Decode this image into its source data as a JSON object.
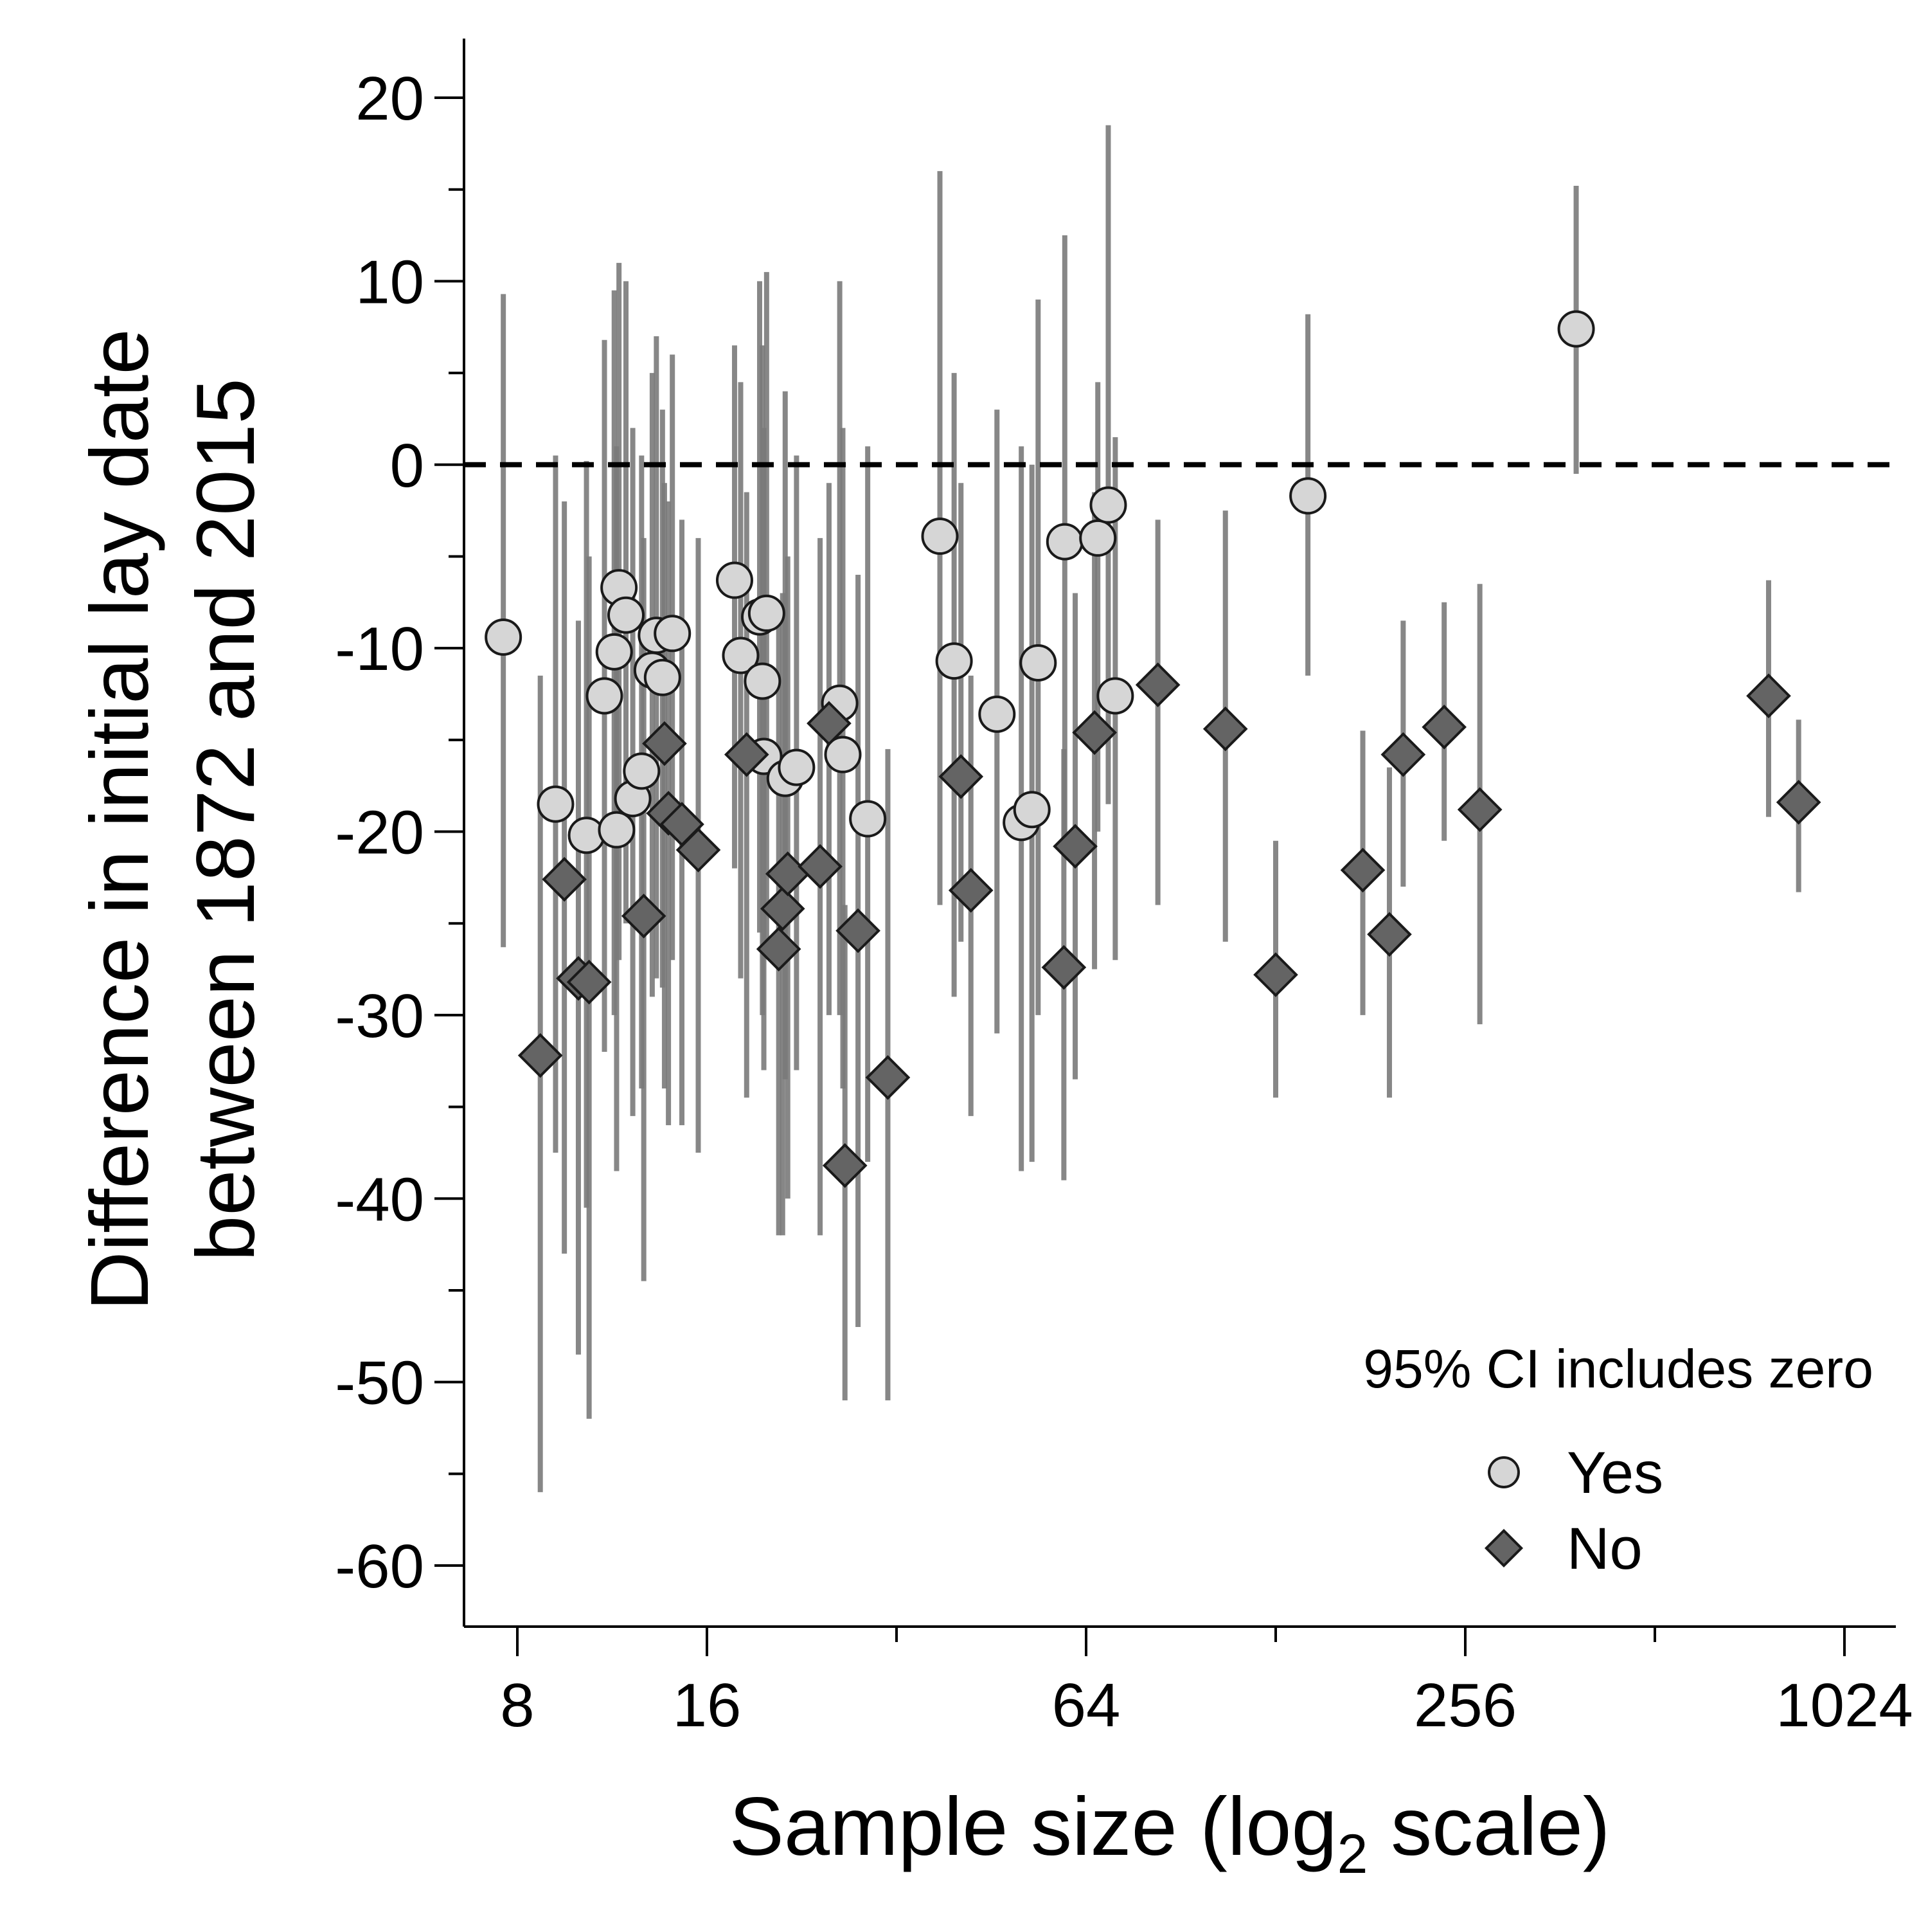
{
  "chart_data": {
    "type": "scatter",
    "xlabel": "Sample size (log",
    "xlabel_subscript": "2",
    "xlabel_suffix": " scale)",
    "ylabel_line1": "Difference in initial lay date",
    "ylabel_line2": "between 1872 and 2015",
    "x_scale": "log2",
    "xlim": [
      7.5,
      1100
    ],
    "ylim": [
      -62.5,
      23.5
    ],
    "x_ticks": [
      8,
      16,
      64,
      256,
      1024
    ],
    "x_tick_labels": [
      "8",
      "16",
      "64",
      "256",
      "1024"
    ],
    "x_minor_ticks": [
      32,
      128,
      512
    ],
    "y_ticks": [
      20,
      10,
      0,
      -10,
      -20,
      -30,
      -40,
      -50,
      -60
    ],
    "y_tick_labels": [
      "20",
      "10",
      "0",
      "-10",
      "-20",
      "-30",
      "-40",
      "-50",
      "-60"
    ],
    "y_minor_ticks": [
      15,
      5,
      -5,
      -15,
      -25,
      -35,
      -45,
      -55
    ],
    "reference_line": {
      "y": 0,
      "style": "dashed"
    },
    "grid": false,
    "legend": {
      "title": "95% CI includes zero",
      "placement": "bottom-right",
      "entries": [
        {
          "label": "Yes",
          "marker": "circle",
          "color": "#d6d6d6"
        },
        {
          "label": "No",
          "marker": "diamond",
          "color": "#646464"
        }
      ]
    },
    "colors": {
      "yes_fill": "#d6d6d6",
      "no_fill": "#646464",
      "error_bar": "#7a7a7a",
      "outline": "#1a1a1a"
    },
    "series": [
      {
        "name": "Yes",
        "marker": "circle",
        "points": [
          {
            "x": 7.6,
            "y": -9.4,
            "lo": -26.3,
            "hi": 9.3
          },
          {
            "x": 9.2,
            "y": -18.5,
            "lo": -37.5,
            "hi": 0.5
          },
          {
            "x": 10.3,
            "y": -20.2,
            "lo": -40.5,
            "hi": 0.2
          },
          {
            "x": 11.0,
            "y": -12.6,
            "lo": -32.0,
            "hi": 6.8
          },
          {
            "x": 11.4,
            "y": -10.2,
            "lo": -30.0,
            "hi": 9.5
          },
          {
            "x": 11.5,
            "y": -19.9,
            "lo": -38.5,
            "hi": 1.0
          },
          {
            "x": 11.6,
            "y": -6.7,
            "lo": -27.0,
            "hi": 11.0
          },
          {
            "x": 11.9,
            "y": -8.2,
            "lo": -25.0,
            "hi": 10.0
          },
          {
            "x": 12.2,
            "y": -18.2,
            "lo": -35.5,
            "hi": 2.0
          },
          {
            "x": 12.6,
            "y": -16.7,
            "lo": -34.0,
            "hi": 0.5
          },
          {
            "x": 13.1,
            "y": -11.2,
            "lo": -29.0,
            "hi": 5.0
          },
          {
            "x": 13.3,
            "y": -9.3,
            "lo": -28.0,
            "hi": 7.0
          },
          {
            "x": 13.6,
            "y": -11.6,
            "lo": -28.5,
            "hi": 3.0
          },
          {
            "x": 14.1,
            "y": -9.2,
            "lo": -27.0,
            "hi": 6.0
          },
          {
            "x": 17.7,
            "y": -6.3,
            "lo": -22.0,
            "hi": 6.5
          },
          {
            "x": 18.1,
            "y": -10.4,
            "lo": -28.0,
            "hi": 4.5
          },
          {
            "x": 19.4,
            "y": -8.3,
            "lo": -25.5,
            "hi": 10.0
          },
          {
            "x": 19.6,
            "y": -11.8,
            "lo": -30.0,
            "hi": 6.5
          },
          {
            "x": 19.7,
            "y": -15.9,
            "lo": -33.0,
            "hi": 2.0
          },
          {
            "x": 19.9,
            "y": -8.1,
            "lo": -26.0,
            "hi": 10.5
          },
          {
            "x": 21.3,
            "y": -17.1,
            "lo": -33.5,
            "hi": 4.0
          },
          {
            "x": 22.2,
            "y": -16.5,
            "lo": -33.0,
            "hi": 0.5
          },
          {
            "x": 26.0,
            "y": -13.0,
            "lo": -30.0,
            "hi": 10.0
          },
          {
            "x": 26.3,
            "y": -15.8,
            "lo": -34.0,
            "hi": 2.0
          },
          {
            "x": 28.8,
            "y": -19.3,
            "lo": -38.0,
            "hi": 1.0
          },
          {
            "x": 37.5,
            "y": -3.9,
            "lo": -24.0,
            "hi": 16.0
          },
          {
            "x": 39.5,
            "y": -10.7,
            "lo": -29.0,
            "hi": 5.0
          },
          {
            "x": 46.2,
            "y": -13.6,
            "lo": -31.0,
            "hi": 3.0
          },
          {
            "x": 50.5,
            "y": -19.5,
            "lo": -38.5,
            "hi": 1.0
          },
          {
            "x": 52.5,
            "y": -18.8,
            "lo": -38.0,
            "hi": 0.0
          },
          {
            "x": 53.7,
            "y": -10.8,
            "lo": -30.0,
            "hi": 9.0
          },
          {
            "x": 59.2,
            "y": -4.2,
            "lo": -21.0,
            "hi": 12.5
          },
          {
            "x": 66.8,
            "y": -4.0,
            "lo": -20.0,
            "hi": 4.5
          },
          {
            "x": 69.4,
            "y": -2.2,
            "lo": -18.5,
            "hi": 18.5
          },
          {
            "x": 71.2,
            "y": -12.6,
            "lo": -27.0,
            "hi": 1.5
          },
          {
            "x": 144.0,
            "y": -1.7,
            "lo": -11.5,
            "hi": 8.2
          },
          {
            "x": 384.0,
            "y": 7.4,
            "lo": -0.5,
            "hi": 15.2
          }
        ]
      },
      {
        "name": "No",
        "marker": "diamond",
        "points": [
          {
            "x": 8.7,
            "y": -32.2,
            "lo": -56.0,
            "hi": -11.5
          },
          {
            "x": 9.5,
            "y": -22.6,
            "lo": -43.0,
            "hi": -2.0
          },
          {
            "x": 10.0,
            "y": -28.0,
            "lo": -48.5,
            "hi": -8.5
          },
          {
            "x": 10.4,
            "y": -28.2,
            "lo": -52.0,
            "hi": -5.0
          },
          {
            "x": 12.7,
            "y": -24.6,
            "lo": -44.5,
            "hi": -4.0
          },
          {
            "x": 13.7,
            "y": -15.2,
            "lo": -34.0,
            "hi": -1.0
          },
          {
            "x": 13.9,
            "y": -19.0,
            "lo": -36.0,
            "hi": -2.0
          },
          {
            "x": 14.6,
            "y": -19.6,
            "lo": -36.0,
            "hi": -3.0
          },
          {
            "x": 15.5,
            "y": -21.0,
            "lo": -37.5,
            "hi": -4.0
          },
          {
            "x": 18.5,
            "y": -15.8,
            "lo": -34.5,
            "hi": -1.5
          },
          {
            "x": 20.8,
            "y": -26.4,
            "lo": -42.0,
            "hi": -8.5
          },
          {
            "x": 21.1,
            "y": -24.2,
            "lo": -42.0,
            "hi": -7.0
          },
          {
            "x": 21.5,
            "y": -22.3,
            "lo": -40.0,
            "hi": -5.0
          },
          {
            "x": 24.2,
            "y": -21.9,
            "lo": -42.0,
            "hi": -4.0
          },
          {
            "x": 25.0,
            "y": -14.1,
            "lo": -30.0,
            "hi": -1.0
          },
          {
            "x": 26.5,
            "y": -38.2,
            "lo": -51.0,
            "hi": -24.0
          },
          {
            "x": 27.8,
            "y": -25.4,
            "lo": -47.0,
            "hi": -6.0
          },
          {
            "x": 31.0,
            "y": -33.4,
            "lo": -51.0,
            "hi": -15.5
          },
          {
            "x": 40.5,
            "y": -17.0,
            "lo": -26.0,
            "hi": -1.0
          },
          {
            "x": 42.0,
            "y": -23.2,
            "lo": -35.5,
            "hi": -11.5
          },
          {
            "x": 59.0,
            "y": -27.4,
            "lo": -39.0,
            "hi": -15.5
          },
          {
            "x": 61.5,
            "y": -20.8,
            "lo": -33.5,
            "hi": -7.0
          },
          {
            "x": 66.0,
            "y": -14.6,
            "lo": -27.5,
            "hi": -1.5
          },
          {
            "x": 83.2,
            "y": -12.0,
            "lo": -24.0,
            "hi": -3.0
          },
          {
            "x": 106.5,
            "y": -14.4,
            "lo": -26.0,
            "hi": -2.5
          },
          {
            "x": 128.0,
            "y": -27.8,
            "lo": -34.5,
            "hi": -20.5
          },
          {
            "x": 176.0,
            "y": -22.1,
            "lo": -30.0,
            "hi": -14.5
          },
          {
            "x": 194.0,
            "y": -25.6,
            "lo": -34.5,
            "hi": -16.5
          },
          {
            "x": 204.0,
            "y": -15.8,
            "lo": -23.0,
            "hi": -8.5
          },
          {
            "x": 237.0,
            "y": -14.3,
            "lo": -20.5,
            "hi": -7.5
          },
          {
            "x": 270.0,
            "y": -18.8,
            "lo": -30.5,
            "hi": -6.5
          },
          {
            "x": 776.0,
            "y": -12.6,
            "lo": -19.2,
            "hi": -6.3
          },
          {
            "x": 866.0,
            "y": -18.4,
            "lo": -23.3,
            "hi": -13.9
          }
        ]
      }
    ]
  }
}
